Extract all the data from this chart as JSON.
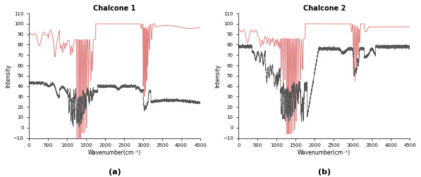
{
  "title_a": "Chalcone 1",
  "title_b": "Chalcone 2",
  "xlabel": "Wavenumber(cm⁻¹)",
  "ylabel": "Intensity",
  "label_a": "(a)",
  "label_b": "(b)",
  "xlim": [
    0,
    4500
  ],
  "ylim": [
    -10,
    110
  ],
  "yticks": [
    -10,
    0,
    10,
    20,
    30,
    40,
    50,
    60,
    70,
    80,
    90,
    100,
    110
  ],
  "xticks": [
    0,
    500,
    1000,
    1500,
    2000,
    2500,
    3000,
    3500,
    4000,
    4500
  ],
  "exp_color": "#555555",
  "theo_color": "#e08080",
  "bg_color": "#ffffff",
  "linewidth_exp": 0.5,
  "linewidth_theo": 0.7
}
